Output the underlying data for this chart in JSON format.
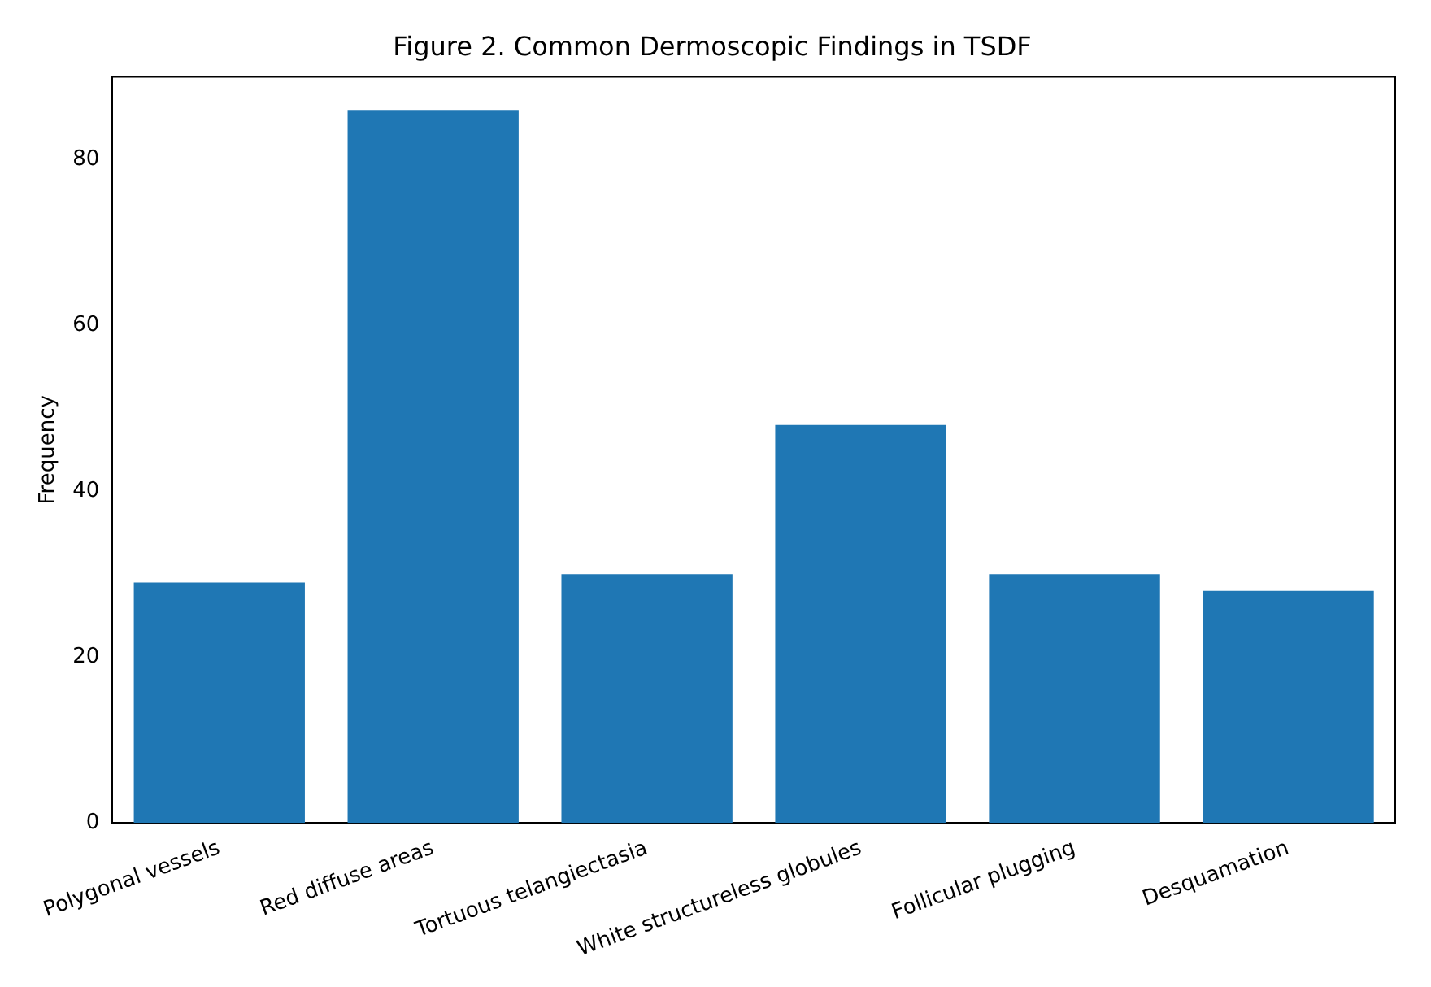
{
  "chart_data": {
    "type": "bar",
    "title": "Figure 2. Common Dermoscopic Findings in TSDF",
    "ylabel": "Frequency",
    "categories": [
      "Polygonal vessels",
      "Red diffuse areas",
      "Tortuous telangiectasia",
      "White structureless globules",
      "Follicular plugging",
      "Desquamation"
    ],
    "values": [
      29,
      86,
      30,
      48,
      30,
      28
    ],
    "color": "#1f77b4",
    "ylim": [
      0,
      90
    ],
    "yticks": [
      0,
      20,
      40,
      60,
      80
    ],
    "grid": false,
    "legend": false
  }
}
